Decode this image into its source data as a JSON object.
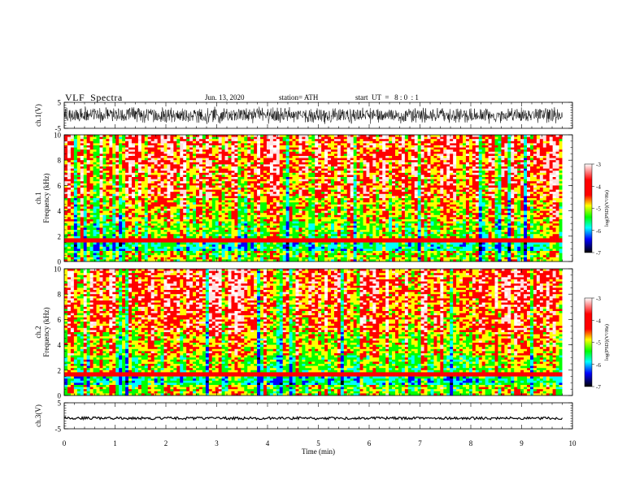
{
  "header": {
    "title": "VLF  Spectra",
    "date": "Jun. 13, 2020",
    "station": "station= ATH",
    "start_ut": "start  UT  =   8 : 0  : 1"
  },
  "chart_data": [
    {
      "type": "line",
      "panel": "ch1-waveform",
      "ylabel": "ch.1(V)",
      "ylim": [
        -5,
        5
      ],
      "yticks": [
        "5",
        "-5"
      ],
      "xlim": [
        0,
        10
      ],
      "x_end": 9.8,
      "series": [
        {
          "values_description_range": [
            -4,
            4
          ]
        }
      ],
      "color": "#000000"
    },
    {
      "type": "heatmap",
      "panel": "ch1-spectrogram",
      "ylabel": [
        "ch.1",
        "Frequency  (kHz)"
      ],
      "ylim": [
        0,
        10
      ],
      "yticks": [
        "0",
        "2",
        "4",
        "6",
        "8",
        "10"
      ],
      "xlim": [
        0,
        10
      ],
      "x_end": 9.8,
      "colorbar": {
        "label": "log(PSD)(V²/Hz)",
        "range": [
          -7,
          -3
        ],
        "ticks": [
          "-3",
          "-4",
          "-5",
          "-6",
          "-7"
        ],
        "colors": [
          "#ffffff",
          "#ff0000",
          "#ffff00",
          "#00ff00",
          "#00ffff",
          "#0000ff",
          "#000000"
        ]
      }
    },
    {
      "type": "heatmap",
      "panel": "ch2-spectrogram",
      "ylabel": [
        "ch.2",
        "Frequency  (kHz)"
      ],
      "ylim": [
        0,
        10
      ],
      "yticks": [
        "0",
        "2",
        "4",
        "6",
        "8",
        "10"
      ],
      "xlim": [
        0,
        10
      ],
      "x_end": 9.8,
      "colorbar": {
        "label": "log(PSD)(V²/Hz)",
        "range": [
          -7,
          -3
        ],
        "ticks": [
          "-3",
          "-4",
          "-5",
          "-6",
          "-7"
        ],
        "colors": [
          "#ffffff",
          "#ff0000",
          "#ffff00",
          "#00ff00",
          "#00ffff",
          "#0000ff",
          "#000000"
        ]
      }
    },
    {
      "type": "line",
      "panel": "ch3-waveform",
      "ylabel": "ch.3(V)",
      "ylim": [
        -5,
        5
      ],
      "yticks": [
        "5",
        "-5"
      ],
      "xlim": [
        0,
        10
      ],
      "x_end": 9.8,
      "color": "#000000"
    }
  ],
  "xaxis": {
    "label": "Time  (min)",
    "ticks": [
      "0",
      "1",
      "2",
      "3",
      "4",
      "5",
      "6",
      "7",
      "8",
      "9",
      "10"
    ]
  }
}
